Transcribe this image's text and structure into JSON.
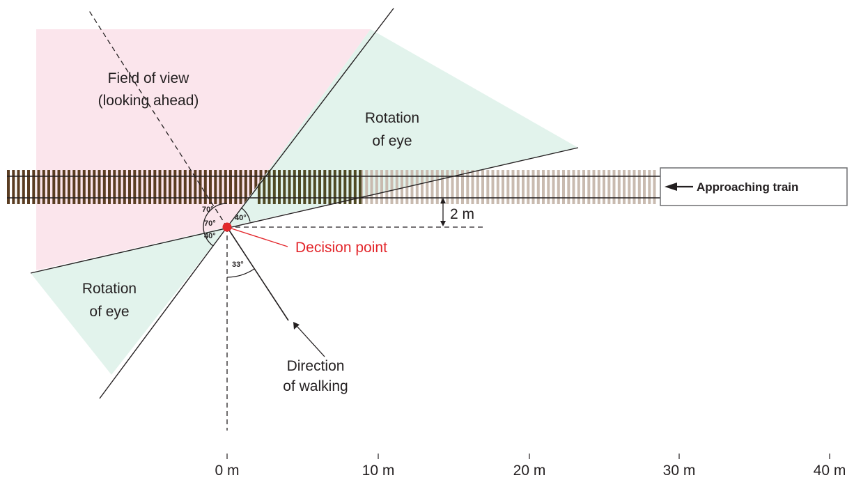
{
  "labels": {
    "field_of_view_line1": "Field of view",
    "field_of_view_line2": "(looking ahead)",
    "rotation_upper_line1": "Rotation",
    "rotation_upper_line2": "of eye",
    "rotation_lower_line1": "Rotation",
    "rotation_lower_line2": "of eye",
    "decision_point": "Decision point",
    "direction_line1": "Direction",
    "direction_line2": "of walking",
    "approaching_train": "Approaching train",
    "distance_to_track": "2 m"
  },
  "angles": {
    "upper": "70°",
    "left": "70°",
    "right": "40°",
    "lower_left": "40°",
    "walking": "33°"
  },
  "axis": {
    "ticks": [
      "0 m",
      "10 m",
      "20 m",
      "30 m",
      "40 m"
    ]
  },
  "colors": {
    "field_of_view": "#fbe5ec",
    "rotation_of_eye": "#e2f3ec",
    "decision_point": "#e3262b",
    "track_dark": "#5a3d22",
    "track_faded": "#c9bbb0"
  }
}
